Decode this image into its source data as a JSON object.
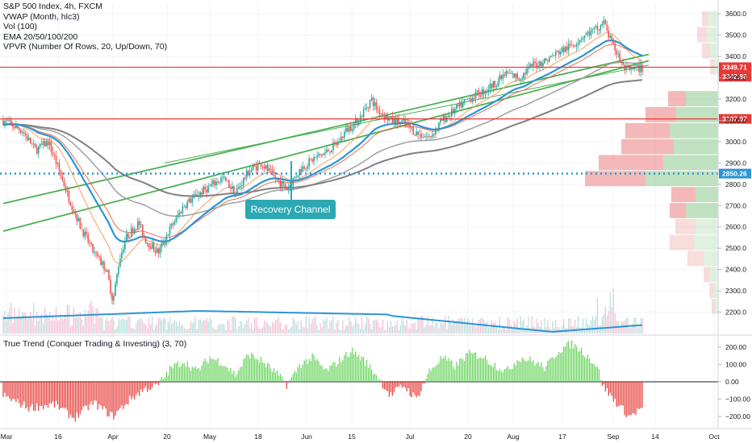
{
  "legend": {
    "title": "S&P 500 Index, 4h, FXCM",
    "line_vwap": "VWAP (Month, hlc3)",
    "line_vol": "Vol (100)",
    "line_ema": "EMA 20/50/100/200",
    "line_vpvr": "VPVR (Number Of Rows, 20, Up/Down, 70)"
  },
  "indicator": {
    "title": "True Trend (Conquer Trading & Investing) (3, 70)"
  },
  "colors": {
    "up": "#26a69a",
    "down": "#ef5350",
    "channel": "#4caf50",
    "vwap": "#2b95d6",
    "ema20": "#f4a261",
    "ema50": "#e76f51",
    "ema100": "#a0a0a0",
    "ema200": "#808080",
    "resistance": "#e53935",
    "support": "#2b95d6",
    "osc_pos": "#66d35a",
    "osc_neg": "#e53935"
  },
  "chart_data": [
    {
      "type": "candlestick",
      "title": "S&P 500 Index, 4h, FXCM",
      "ylim": [
        2100,
        3650
      ],
      "yticks": [
        3600,
        3500,
        3400,
        3300,
        3200,
        3100,
        3000,
        2900,
        2800,
        2700,
        2600,
        2500,
        2400,
        2300,
        2200
      ],
      "x_labels": [
        "Mar",
        "16",
        "Apr",
        "20",
        "May",
        "18",
        "Jun",
        "15",
        "Jul",
        "20",
        "Aug",
        "17",
        "Sep",
        "14",
        "Oct"
      ],
      "price_path": [
        [
          0,
          3100
        ],
        [
          3,
          3050
        ],
        [
          5,
          2960
        ],
        [
          7,
          3000
        ],
        [
          8,
          2920
        ],
        [
          10,
          2750
        ],
        [
          12,
          2600
        ],
        [
          14,
          2480
        ],
        [
          16,
          2400
        ],
        [
          17,
          2250
        ],
        [
          18,
          2450
        ],
        [
          19,
          2550
        ],
        [
          21,
          2620
        ],
        [
          22,
          2540
        ],
        [
          24,
          2480
        ],
        [
          26,
          2600
        ],
        [
          28,
          2700
        ],
        [
          30,
          2750
        ],
        [
          32,
          2790
        ],
        [
          34,
          2830
        ],
        [
          36,
          2760
        ],
        [
          38,
          2860
        ],
        [
          40,
          2900
        ],
        [
          42,
          2830
        ],
        [
          44,
          2780
        ],
        [
          46,
          2870
        ],
        [
          48,
          2920
        ],
        [
          50,
          2950
        ],
        [
          52,
          3000
        ],
        [
          53,
          3050
        ],
        [
          55,
          3100
        ],
        [
          57,
          3200
        ],
        [
          58,
          3150
        ],
        [
          60,
          3100
        ],
        [
          62,
          3090
        ],
        [
          64,
          3040
        ],
        [
          66,
          3020
        ],
        [
          68,
          3100
        ],
        [
          70,
          3150
        ],
        [
          72,
          3200
        ],
        [
          74,
          3230
        ],
        [
          76,
          3270
        ],
        [
          78,
          3320
        ],
        [
          80,
          3300
        ],
        [
          82,
          3360
        ],
        [
          84,
          3380
        ],
        [
          86,
          3420
        ],
        [
          88,
          3450
        ],
        [
          90,
          3500
        ],
        [
          92,
          3530
        ],
        [
          93,
          3560
        ],
        [
          94,
          3480
        ],
        [
          95,
          3420
        ],
        [
          96,
          3350
        ],
        [
          97,
          3330
        ],
        [
          98,
          3345
        ],
        [
          99,
          3342
        ]
      ],
      "levels": [
        {
          "label": "3349.71",
          "value": 3349.71,
          "style": "solid",
          "color": "#e53935"
        },
        {
          "label": "3342.86",
          "value": 3342.86,
          "style": "none",
          "color": "#e53935"
        },
        {
          "label": "3107.07",
          "value": 3107.07,
          "style": "solid",
          "color": "#e53935"
        },
        {
          "label": "2850.26",
          "value": 2850.26,
          "style": "dotted",
          "color": "#2b95d6"
        }
      ],
      "channel_upper": [
        [
          0,
          2710
        ],
        [
          100,
          3410
        ]
      ],
      "channel_lower": [
        [
          0,
          2580
        ],
        [
          100,
          3380
        ]
      ],
      "channel_inner": [
        [
          25,
          2900
        ],
        [
          100,
          3360
        ]
      ],
      "annotation": {
        "text": "Recovery Channel"
      },
      "volume_profile": [
        {
          "price": 3575,
          "up": 0.12,
          "down": 0.08
        },
        {
          "price": 3500,
          "up": 0.14,
          "down": 0.12
        },
        {
          "price": 3425,
          "up": 0.1,
          "down": 0.1
        },
        {
          "price": 3350,
          "up": 0.06,
          "down": 0.04
        },
        {
          "price": 3200,
          "up": 0.4,
          "down": 0.22
        },
        {
          "price": 3125,
          "up": 0.52,
          "down": 0.38
        },
        {
          "price": 3050,
          "up": 0.6,
          "down": 0.55
        },
        {
          "price": 2975,
          "up": 0.55,
          "down": 0.65
        },
        {
          "price": 2900,
          "up": 0.68,
          "down": 0.8
        },
        {
          "price": 2825,
          "up": 0.9,
          "down": 0.75
        },
        {
          "price": 2750,
          "up": 0.28,
          "down": 0.3
        },
        {
          "price": 2675,
          "up": 0.4,
          "down": 0.2
        },
        {
          "price": 2600,
          "up": 0.28,
          "down": 0.25
        },
        {
          "price": 2525,
          "up": 0.3,
          "down": 0.3
        },
        {
          "price": 2450,
          "up": 0.18,
          "down": 0.2
        },
        {
          "price": 2375,
          "up": 0.1,
          "down": 0.08
        },
        {
          "price": 2300,
          "up": 0.06,
          "down": 0.05
        },
        {
          "price": 2225,
          "up": 0.04,
          "down": 0.04
        }
      ]
    },
    {
      "type": "bar",
      "title": "True Trend (Conquer Trading & Investing) (3, 70)",
      "ylim": [
        -260,
        260
      ],
      "yticks": [
        200,
        100,
        0,
        -100,
        -200
      ],
      "ytick_labels": [
        "200.00",
        "100.00",
        "0.00",
        "−100.00",
        "−200.00"
      ],
      "path": [
        [
          0,
          -80
        ],
        [
          4,
          -150
        ],
        [
          8,
          -130
        ],
        [
          11,
          -210
        ],
        [
          14,
          -120
        ],
        [
          17,
          -200
        ],
        [
          20,
          -90
        ],
        [
          22,
          -40
        ],
        [
          24,
          -20
        ],
        [
          26,
          80
        ],
        [
          28,
          120
        ],
        [
          30,
          60
        ],
        [
          32,
          140
        ],
        [
          34,
          110
        ],
        [
          36,
          40
        ],
        [
          38,
          160
        ],
        [
          40,
          120
        ],
        [
          42,
          60
        ],
        [
          44,
          -20
        ],
        [
          46,
          100
        ],
        [
          48,
          140
        ],
        [
          50,
          60
        ],
        [
          52,
          120
        ],
        [
          54,
          180
        ],
        [
          56,
          120
        ],
        [
          58,
          30
        ],
        [
          60,
          -80
        ],
        [
          62,
          -20
        ],
        [
          64,
          -100
        ],
        [
          66,
          60
        ],
        [
          68,
          140
        ],
        [
          70,
          90
        ],
        [
          72,
          160
        ],
        [
          74,
          150
        ],
        [
          76,
          100
        ],
        [
          78,
          60
        ],
        [
          80,
          140
        ],
        [
          82,
          120
        ],
        [
          84,
          80
        ],
        [
          86,
          180
        ],
        [
          88,
          220
        ],
        [
          90,
          170
        ],
        [
          92,
          90
        ],
        [
          93,
          -30
        ],
        [
          95,
          -120
        ],
        [
          97,
          -200
        ],
        [
          99,
          -150
        ]
      ]
    }
  ]
}
